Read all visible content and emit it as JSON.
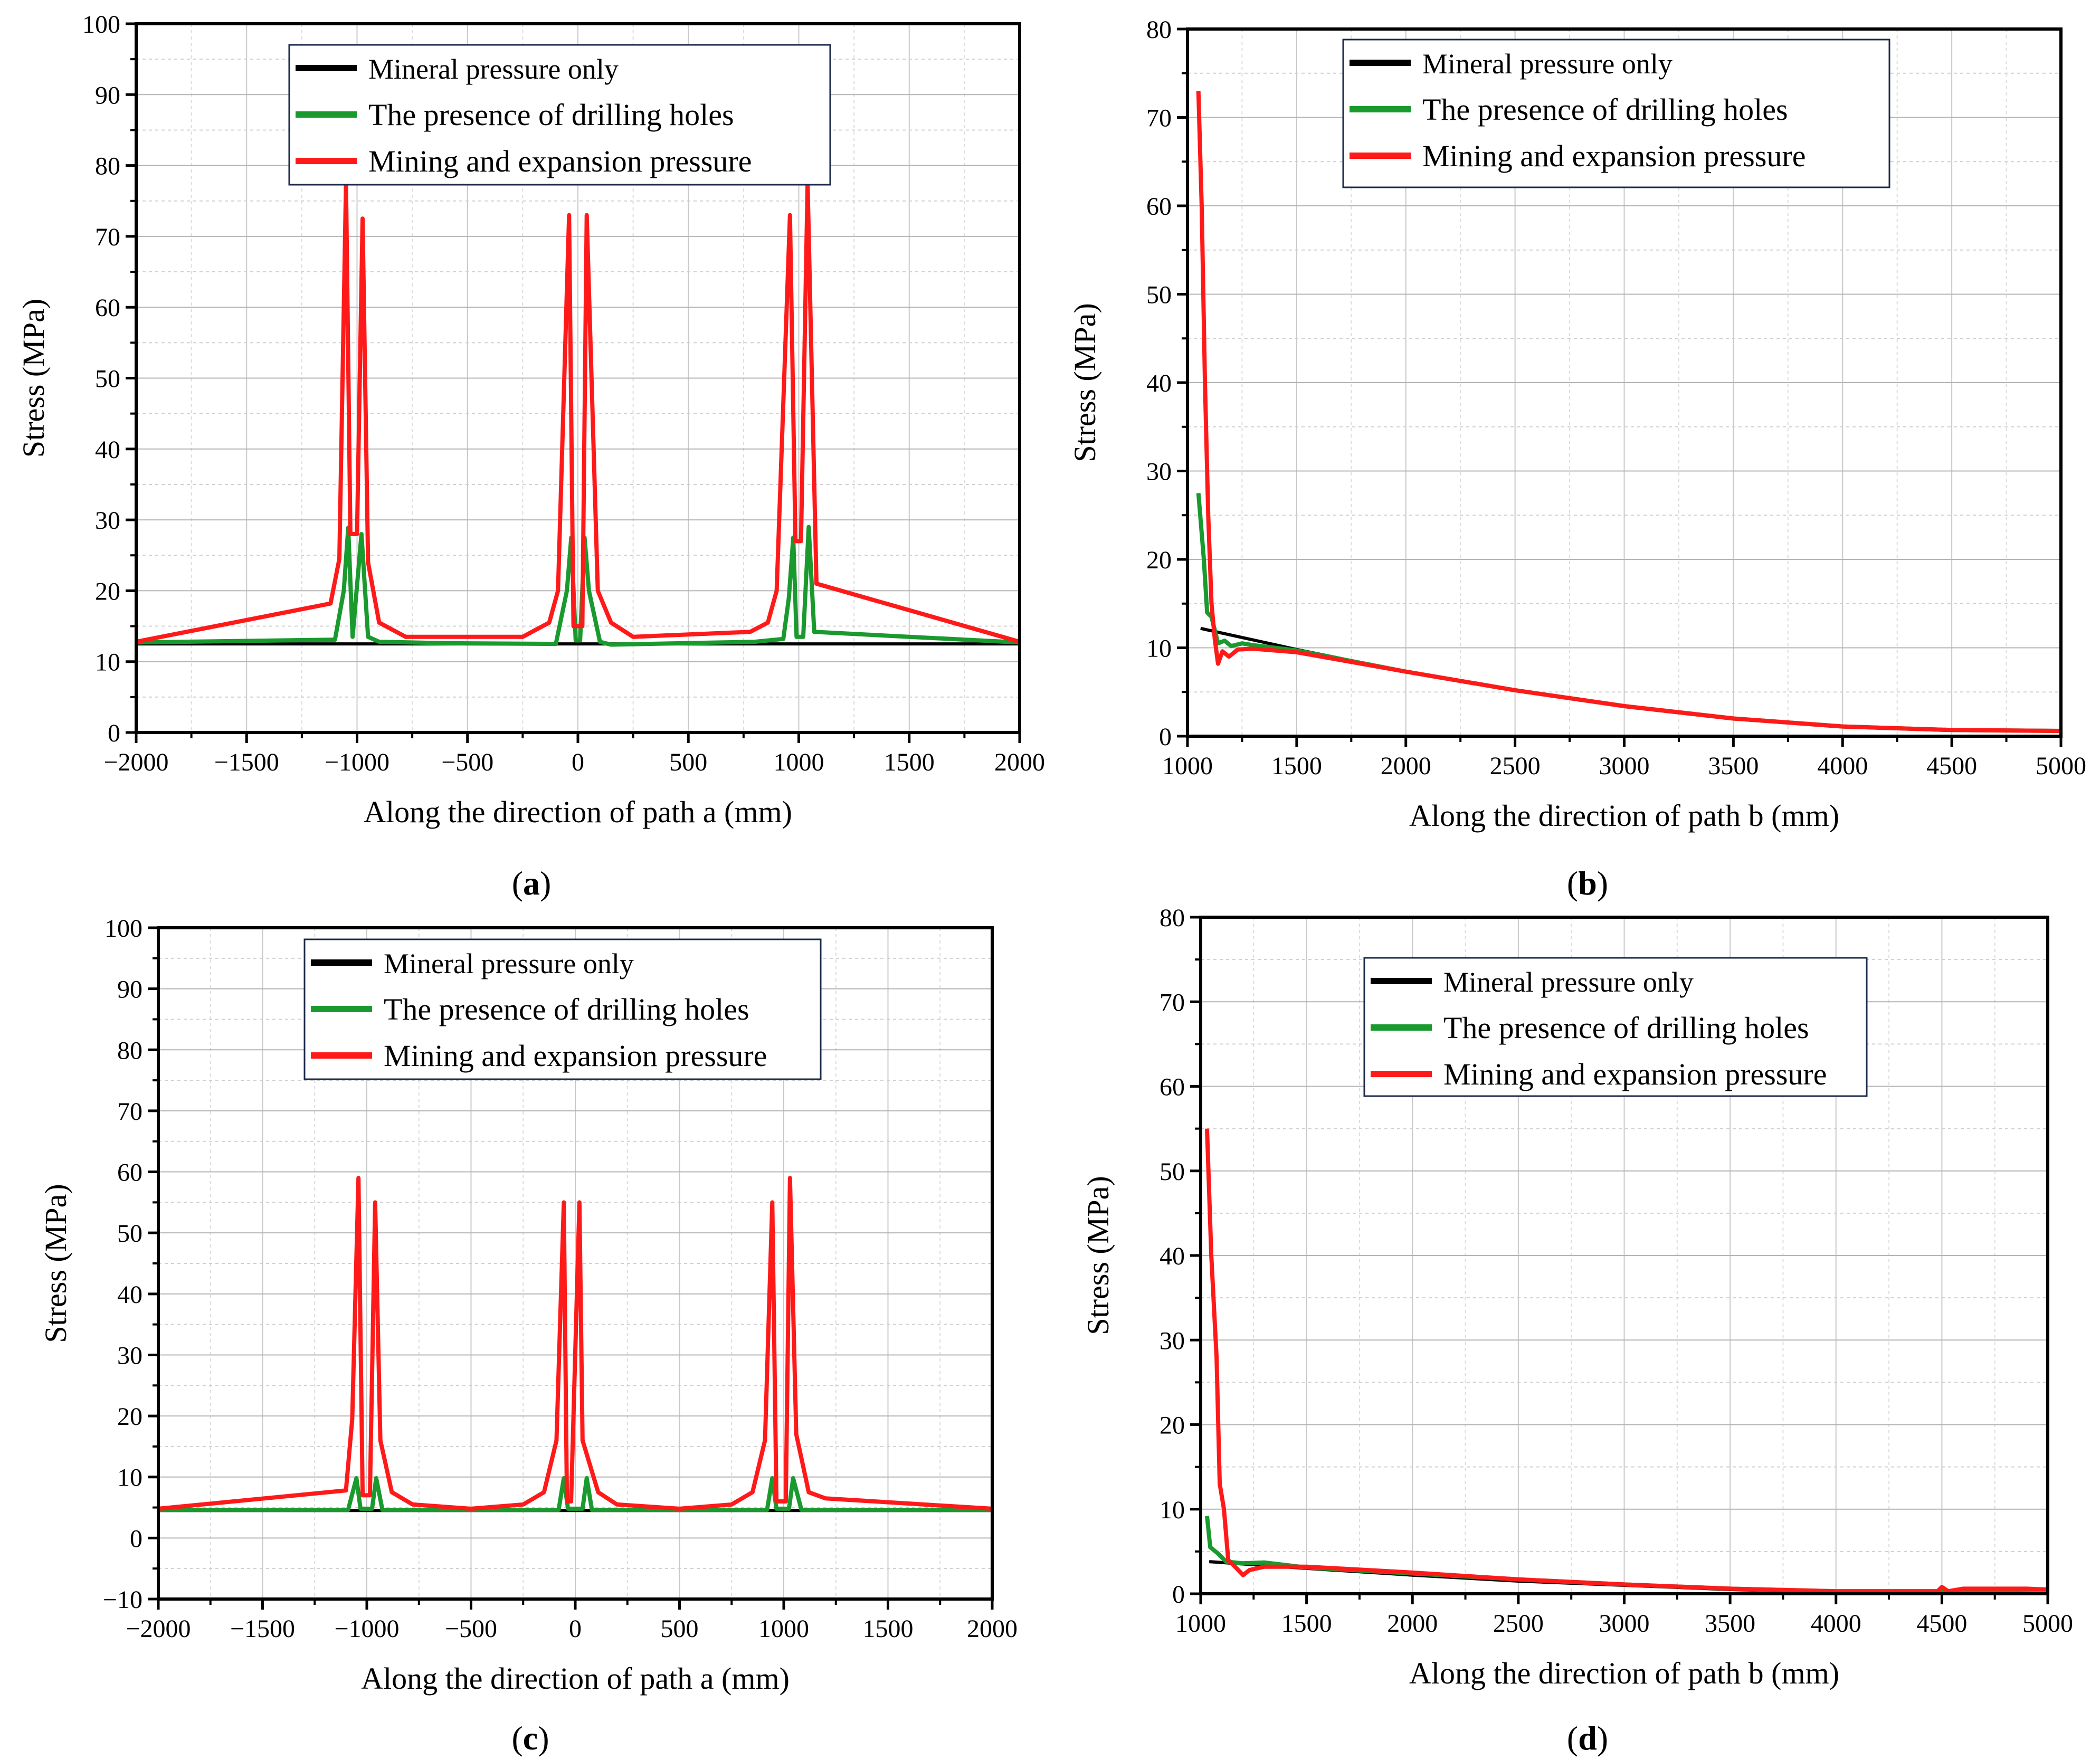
{
  "figure": {
    "legend_labels": [
      "Mineral pressure only",
      "The presence of drilling holes",
      "Mining and expansion pressure"
    ],
    "colors": {
      "mineral": "#000000",
      "drilling": "#1a9a2e",
      "mining": "#ff1a1a"
    }
  },
  "chart_data": [
    {
      "id": "a",
      "caption": "a",
      "type": "line",
      "xlabel": "Along the direction of path a  (mm)",
      "ylabel": "Stress  (MPa)",
      "xlim": [
        -2000,
        2000
      ],
      "ylim": [
        0,
        100
      ],
      "xticks": [
        -2000,
        -1500,
        -1000,
        -500,
        0,
        500,
        1000,
        1500,
        2000
      ],
      "xtick_labels": [
        "−2000",
        "−1500",
        "−1000",
        "−500",
        "0",
        "500",
        "1000",
        "1500",
        "2000"
      ],
      "yticks": [
        0,
        10,
        20,
        30,
        40,
        50,
        60,
        70,
        80,
        90,
        100
      ],
      "ytick_labels": [
        "0",
        "10",
        "20",
        "30",
        "40",
        "50",
        "60",
        "70",
        "80",
        "90",
        "100"
      ],
      "legend_position": "top-center",
      "series": [
        {
          "name": "Mineral pressure only",
          "key": "mineral",
          "points": [
            [
              -2000,
              12.5
            ],
            [
              2000,
              12.5
            ]
          ]
        },
        {
          "name": "The presence of drilling holes",
          "key": "drilling",
          "points": [
            [
              -2000,
              12.7
            ],
            [
              -1100,
              13.1
            ],
            [
              -1060,
              20
            ],
            [
              -1040,
              28.9
            ],
            [
              -1020,
              13.5
            ],
            [
              -980,
              28
            ],
            [
              -950,
              13.5
            ],
            [
              -900,
              12.8
            ],
            [
              -600,
              12.6
            ],
            [
              -100,
              12.5
            ],
            [
              -50,
              20
            ],
            [
              -30,
              27.5
            ],
            [
              -10,
              13.0
            ],
            [
              10,
              13.0
            ],
            [
              30,
              27.5
            ],
            [
              50,
              20
            ],
            [
              100,
              12.8
            ],
            [
              150,
              12.4
            ],
            [
              800,
              12.8
            ],
            [
              930,
              13.2
            ],
            [
              955,
              19
            ],
            [
              975,
              27.5
            ],
            [
              990,
              13.5
            ],
            [
              1020,
              13.5
            ],
            [
              1045,
              29
            ],
            [
              1070,
              14.2
            ],
            [
              1500,
              13.5
            ],
            [
              2000,
              12.7
            ]
          ]
        },
        {
          "name": "Mining and expansion pressure",
          "key": "mining",
          "points": [
            [
              -2000,
              12.8
            ],
            [
              -1120,
              18.2
            ],
            [
              -1080,
              24.5
            ],
            [
              -1050,
              77.5
            ],
            [
              -1030,
              28
            ],
            [
              -1000,
              28
            ],
            [
              -975,
              72.5
            ],
            [
              -950,
              24
            ],
            [
              -900,
              15.5
            ],
            [
              -780,
              13.5
            ],
            [
              -250,
              13.5
            ],
            [
              -130,
              15.5
            ],
            [
              -90,
              20
            ],
            [
              -40,
              73
            ],
            [
              -20,
              15
            ],
            [
              20,
              15
            ],
            [
              40,
              73
            ],
            [
              90,
              20
            ],
            [
              150,
              15.5
            ],
            [
              250,
              13.5
            ],
            [
              780,
              14.2
            ],
            [
              860,
              15.5
            ],
            [
              900,
              20
            ],
            [
              960,
              73
            ],
            [
              985,
              27
            ],
            [
              1010,
              27
            ],
            [
              1040,
              77.5
            ],
            [
              1080,
              21
            ],
            [
              2000,
              12.8
            ]
          ]
        }
      ]
    },
    {
      "id": "b",
      "caption": "b",
      "type": "line",
      "xlabel": "Along the direction of path b  (mm)",
      "ylabel": "Stress  (MPa)",
      "xlim": [
        1000,
        5000
      ],
      "ylim": [
        0,
        80
      ],
      "xticks": [
        1000,
        1500,
        2000,
        2500,
        3000,
        3500,
        4000,
        4500,
        5000
      ],
      "xtick_labels": [
        "1000",
        "1500",
        "2000",
        "2500",
        "3000",
        "3500",
        "4000",
        "4500",
        "5000"
      ],
      "yticks": [
        0,
        10,
        20,
        30,
        40,
        50,
        60,
        70,
        80
      ],
      "ytick_labels": [
        "0",
        "10",
        "20",
        "30",
        "40",
        "50",
        "60",
        "70",
        "80"
      ],
      "legend_position": "top-center",
      "series": [
        {
          "name": "Mineral pressure only",
          "key": "mineral",
          "points": [
            [
              1060,
              12.2
            ],
            [
              1500,
              9.8
            ],
            [
              2000,
              7.3
            ],
            [
              2500,
              5.2
            ],
            [
              3000,
              3.4
            ],
            [
              3500,
              2.0
            ],
            [
              4000,
              1.1
            ],
            [
              4500,
              0.7
            ],
            [
              5000,
              0.6
            ]
          ]
        },
        {
          "name": "The presence of drilling holes",
          "key": "drilling",
          "points": [
            [
              1050,
              27.5
            ],
            [
              1075,
              20
            ],
            [
              1090,
              14
            ],
            [
              1110,
              13.5
            ],
            [
              1140,
              10.5
            ],
            [
              1170,
              10.8
            ],
            [
              1200,
              10.2
            ],
            [
              1250,
              10.5
            ],
            [
              1300,
              10.3
            ],
            [
              1500,
              9.7
            ],
            [
              2000,
              7.3
            ],
            [
              2500,
              5.2
            ],
            [
              3000,
              3.4
            ],
            [
              3500,
              2.0
            ],
            [
              4000,
              1.1
            ],
            [
              4500,
              0.7
            ],
            [
              5000,
              0.6
            ]
          ]
        },
        {
          "name": "Mining and expansion pressure",
          "key": "mining",
          "points": [
            [
              1050,
              73
            ],
            [
              1065,
              60
            ],
            [
              1080,
              40
            ],
            [
              1095,
              25
            ],
            [
              1110,
              15
            ],
            [
              1125,
              11
            ],
            [
              1140,
              8.2
            ],
            [
              1160,
              9.6
            ],
            [
              1190,
              9.0
            ],
            [
              1230,
              9.8
            ],
            [
              1300,
              9.9
            ],
            [
              1500,
              9.5
            ],
            [
              2000,
              7.3
            ],
            [
              2500,
              5.2
            ],
            [
              3000,
              3.4
            ],
            [
              3500,
              2.0
            ],
            [
              4000,
              1.1
            ],
            [
              4500,
              0.7
            ],
            [
              5000,
              0.6
            ]
          ]
        }
      ]
    },
    {
      "id": "c",
      "caption": "c",
      "type": "line",
      "xlabel": "Along the direction of path a  (mm)",
      "ylabel": "Stress  (MPa)",
      "xlim": [
        -2000,
        2000
      ],
      "ylim": [
        -10,
        100
      ],
      "xticks": [
        -2000,
        -1500,
        -1000,
        -500,
        0,
        500,
        1000,
        1500,
        2000
      ],
      "xtick_labels": [
        "−2000",
        "−1500",
        "−1000",
        "−500",
        "0",
        "500",
        "1000",
        "1500",
        "2000"
      ],
      "yticks": [
        -10,
        0,
        10,
        20,
        30,
        40,
        50,
        60,
        70,
        80,
        90,
        100
      ],
      "ytick_labels": [
        "−10",
        "0",
        "10",
        "20",
        "30",
        "40",
        "50",
        "60",
        "70",
        "80",
        "90",
        "100"
      ],
      "legend_position": "top-center",
      "series": [
        {
          "name": "Mineral pressure only",
          "key": "mineral",
          "points": [
            [
              -2000,
              4.5
            ],
            [
              2000,
              4.5
            ]
          ]
        },
        {
          "name": "The presence of drilling holes",
          "key": "drilling",
          "points": [
            [
              -2000,
              4.6
            ],
            [
              -1090,
              4.6
            ],
            [
              -1050,
              9.8
            ],
            [
              -1030,
              4.8
            ],
            [
              -975,
              4.8
            ],
            [
              -955,
              9.8
            ],
            [
              -925,
              4.6
            ],
            [
              -80,
              4.6
            ],
            [
              -55,
              9.8
            ],
            [
              -35,
              4.8
            ],
            [
              35,
              4.8
            ],
            [
              55,
              9.8
            ],
            [
              80,
              4.6
            ],
            [
              920,
              4.6
            ],
            [
              945,
              9.8
            ],
            [
              965,
              4.8
            ],
            [
              1025,
              4.8
            ],
            [
              1045,
              9.8
            ],
            [
              1085,
              4.6
            ],
            [
              2000,
              4.6
            ]
          ]
        },
        {
          "name": "Mining and expansion pressure",
          "key": "mining",
          "points": [
            [
              -2000,
              4.8
            ],
            [
              -1100,
              7.8
            ],
            [
              -1070,
              19.5
            ],
            [
              -1040,
              59
            ],
            [
              -1020,
              7
            ],
            [
              -985,
              7
            ],
            [
              -960,
              55
            ],
            [
              -935,
              16
            ],
            [
              -880,
              7.5
            ],
            [
              -780,
              5.5
            ],
            [
              -500,
              4.8
            ],
            [
              -250,
              5.5
            ],
            [
              -150,
              7.5
            ],
            [
              -90,
              16
            ],
            [
              -55,
              55
            ],
            [
              -40,
              6
            ],
            [
              -20,
              6
            ],
            [
              20,
              55
            ],
            [
              35,
              16
            ],
            [
              110,
              7.5
            ],
            [
              200,
              5.5
            ],
            [
              500,
              4.8
            ],
            [
              750,
              5.5
            ],
            [
              850,
              7.5
            ],
            [
              910,
              16
            ],
            [
              945,
              55
            ],
            [
              965,
              6
            ],
            [
              1010,
              6
            ],
            [
              1030,
              59
            ],
            [
              1060,
              17
            ],
            [
              1120,
              7.5
            ],
            [
              1200,
              6.5
            ],
            [
              2000,
              4.8
            ]
          ]
        }
      ]
    },
    {
      "id": "d",
      "caption": "d",
      "type": "line",
      "xlabel": "Along the direction of path b  (mm)",
      "ylabel": "Stress  (MPa)",
      "xlim": [
        1000,
        5000
      ],
      "ylim": [
        0,
        80
      ],
      "xticks": [
        1000,
        1500,
        2000,
        2500,
        3000,
        3500,
        4000,
        4500,
        5000
      ],
      "xtick_labels": [
        "1000",
        "1500",
        "2000",
        "2500",
        "3000",
        "3500",
        "4000",
        "4500",
        "5000"
      ],
      "yticks": [
        0,
        10,
        20,
        30,
        40,
        50,
        60,
        70,
        80
      ],
      "ytick_labels": [
        "0",
        "10",
        "20",
        "30",
        "40",
        "50",
        "60",
        "70",
        "80"
      ],
      "legend_position": "top-center",
      "series": [
        {
          "name": "Mineral pressure only",
          "key": "mineral",
          "points": [
            [
              1040,
              3.8
            ],
            [
              1500,
              3.0
            ],
            [
              2000,
              2.2
            ],
            [
              2500,
              1.5
            ],
            [
              3000,
              1.0
            ],
            [
              3500,
              0.5
            ],
            [
              4000,
              0.2
            ],
            [
              4500,
              0.1
            ],
            [
              5000,
              0.5
            ]
          ]
        },
        {
          "name": "The presence of drilling holes",
          "key": "drilling",
          "points": [
            [
              1030,
              9.2
            ],
            [
              1045,
              5.5
            ],
            [
              1080,
              4.8
            ],
            [
              1120,
              3.8
            ],
            [
              1200,
              3.6
            ],
            [
              1300,
              3.7
            ],
            [
              1500,
              3.1
            ],
            [
              2000,
              2.4
            ],
            [
              2500,
              1.7
            ],
            [
              3000,
              1.1
            ],
            [
              3500,
              0.6
            ],
            [
              4000,
              0.3
            ],
            [
              4500,
              0.3
            ],
            [
              5000,
              0.5
            ]
          ]
        },
        {
          "name": "Mining and expansion pressure",
          "key": "mining",
          "points": [
            [
              1030,
              55
            ],
            [
              1050,
              40
            ],
            [
              1075,
              28
            ],
            [
              1090,
              13
            ],
            [
              1110,
              10
            ],
            [
              1130,
              4.0
            ],
            [
              1170,
              3.0
            ],
            [
              1200,
              2.2
            ],
            [
              1230,
              2.8
            ],
            [
              1300,
              3.2
            ],
            [
              1500,
              3.2
            ],
            [
              2000,
              2.5
            ],
            [
              2500,
              1.7
            ],
            [
              3000,
              1.1
            ],
            [
              3500,
              0.6
            ],
            [
              4000,
              0.3
            ],
            [
              4480,
              0.3
            ],
            [
              4500,
              0.8
            ],
            [
              4530,
              0.3
            ],
            [
              4600,
              0.6
            ],
            [
              4900,
              0.6
            ],
            [
              5000,
              0.5
            ]
          ]
        }
      ]
    }
  ]
}
